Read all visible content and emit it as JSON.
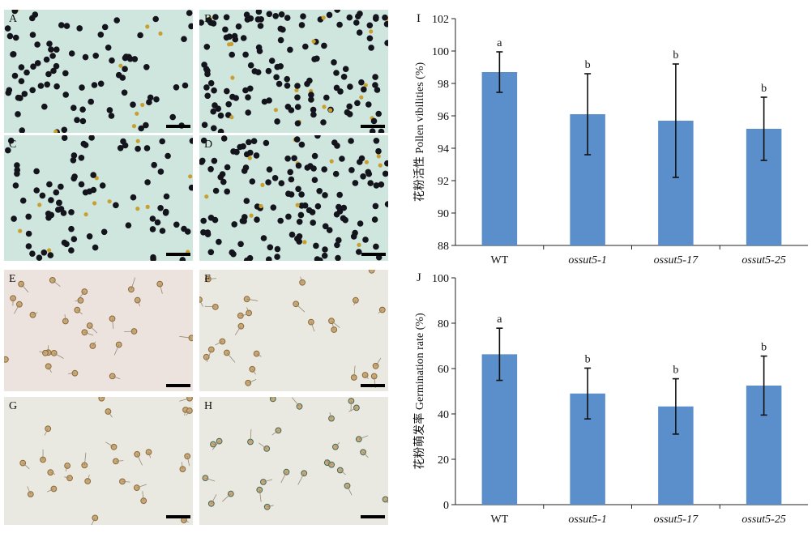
{
  "panels": {
    "A": {
      "label": "A"
    },
    "B": {
      "label": "B"
    },
    "C": {
      "label": "C"
    },
    "D": {
      "label": "D"
    },
    "E": {
      "label": "E"
    },
    "F": {
      "label": "F"
    },
    "G": {
      "label": "G"
    },
    "H": {
      "label": "H"
    }
  },
  "colors": {
    "bar": "#5b8fcb",
    "stain_bg": "#cfe6df",
    "germ_bg_1": "#ece3de",
    "germ_bg_2": "#e9e9e2",
    "pollen_dark": "#14141c",
    "pollen_light": "#c8a030"
  },
  "chart_data": [
    {
      "panel_label": "I",
      "type": "bar",
      "categories": [
        "WT",
        "ossut5-1",
        "ossut5-17",
        "ossut5-25"
      ],
      "values": [
        98.7,
        96.1,
        95.7,
        95.2
      ],
      "errors": [
        1.25,
        2.5,
        3.5,
        1.95
      ],
      "significance": [
        "a",
        "b",
        "b",
        "b"
      ],
      "title": "",
      "xlabel": "",
      "ylabel": "花粉活性 Pollen vibilities (%)",
      "ylim": [
        88,
        102
      ],
      "yticks": [
        88,
        90,
        92,
        94,
        96,
        98,
        100,
        102
      ],
      "grid": false
    },
    {
      "panel_label": "J",
      "type": "bar",
      "categories": [
        "WT",
        "ossut5-1",
        "ossut5-17",
        "ossut5-25"
      ],
      "values": [
        66.3,
        49.0,
        43.3,
        52.5
      ],
      "errors": [
        11.5,
        11.2,
        12.2,
        13.0
      ],
      "significance": [
        "a",
        "b",
        "b",
        "b"
      ],
      "title": "",
      "xlabel": "",
      "ylabel": "花粉萌发率 Germination rate (%)",
      "ylim": [
        0,
        100
      ],
      "yticks": [
        0,
        20,
        40,
        60,
        80,
        100
      ],
      "grid": false
    }
  ]
}
